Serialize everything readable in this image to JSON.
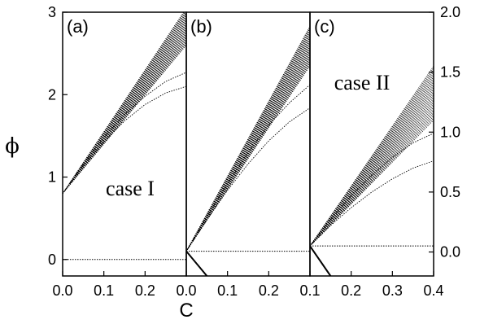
{
  "chart_data": {
    "type": "line",
    "xlabel": "C",
    "ylabel": "ϕ",
    "panels": [
      {
        "label": "(a)",
        "case_label": "case I",
        "xlim": [
          0,
          0.3
        ],
        "ylim": [
          -0.2,
          3.0
        ],
        "xticks": [
          "0.0",
          "0.1",
          "0.2"
        ],
        "yticks": [
          "0",
          "1",
          "2",
          "3"
        ],
        "fan": {
          "origin": [
            0.0,
            0.8
          ],
          "slope_max": 7.5,
          "slope_min": 6.0,
          "x_end": 0.3
        },
        "curves": [
          {
            "x": [
              0,
              0.05,
              0.1,
              0.15,
              0.2,
              0.25,
              0.3
            ],
            "y": [
              0.8,
              1.16,
              1.48,
              1.76,
              1.98,
              2.16,
              2.27
            ]
          },
          {
            "x": [
              0,
              0.05,
              0.1,
              0.15,
              0.2,
              0.25,
              0.3
            ],
            "y": [
              0.8,
              1.14,
              1.43,
              1.68,
              1.88,
              2.02,
              2.1
            ]
          }
        ],
        "hline": 0
      },
      {
        "label": "(b)",
        "xlim": [
          0,
          0.3
        ],
        "ylim": [
          -0.2,
          3.0
        ],
        "xticks": [
          "0.0",
          "0.1",
          "0.2"
        ],
        "yticks": [],
        "fan": {
          "origin": [
            0.0,
            0.1
          ],
          "slope_max": 9.1,
          "slope_min": 7.5,
          "x_end": 0.3
        },
        "curves": [
          {
            "x": [
              0,
              0.05,
              0.1,
              0.15,
              0.2,
              0.25,
              0.3
            ],
            "y": [
              0.1,
              0.52,
              0.92,
              1.3,
              1.63,
              1.9,
              2.12
            ]
          },
          {
            "x": [
              0,
              0.05,
              0.1,
              0.15,
              0.2,
              0.25,
              0.3
            ],
            "y": [
              0.1,
              0.48,
              0.84,
              1.16,
              1.44,
              1.67,
              1.84
            ]
          }
        ],
        "hline": 0.1,
        "drop": {
          "x": [
            0,
            0.05
          ],
          "y": [
            0.1,
            -0.2
          ]
        }
      },
      {
        "label": "(c)",
        "case_label": "case II",
        "xlim": [
          0.1,
          0.4
        ],
        "ylim": [
          -0.2,
          2.0
        ],
        "xticks": [
          "0.1",
          "0.2",
          "0.3",
          "0.4"
        ],
        "yticks_right": [
          "0.0",
          "0.5",
          "1.0",
          "1.5",
          "2.0"
        ],
        "fan": {
          "origin": [
            0.1,
            0.05
          ],
          "slope_max": 5.0,
          "slope_min": 3.5,
          "x_end": 0.4
        },
        "curves": [
          {
            "x": [
              0.1,
              0.15,
              0.2,
              0.25,
              0.3,
              0.35,
              0.4
            ],
            "y": [
              0.05,
              0.27,
              0.47,
              0.64,
              0.79,
              0.91,
              0.99
            ]
          },
          {
            "x": [
              0.1,
              0.15,
              0.2,
              0.25,
              0.3,
              0.35,
              0.4
            ],
            "y": [
              0.05,
              0.22,
              0.37,
              0.5,
              0.61,
              0.7,
              0.76
            ]
          }
        ],
        "hline": 0.05,
        "drop": {
          "x": [
            0.1,
            0.15
          ],
          "y": [
            0.05,
            -0.2
          ]
        }
      }
    ]
  }
}
